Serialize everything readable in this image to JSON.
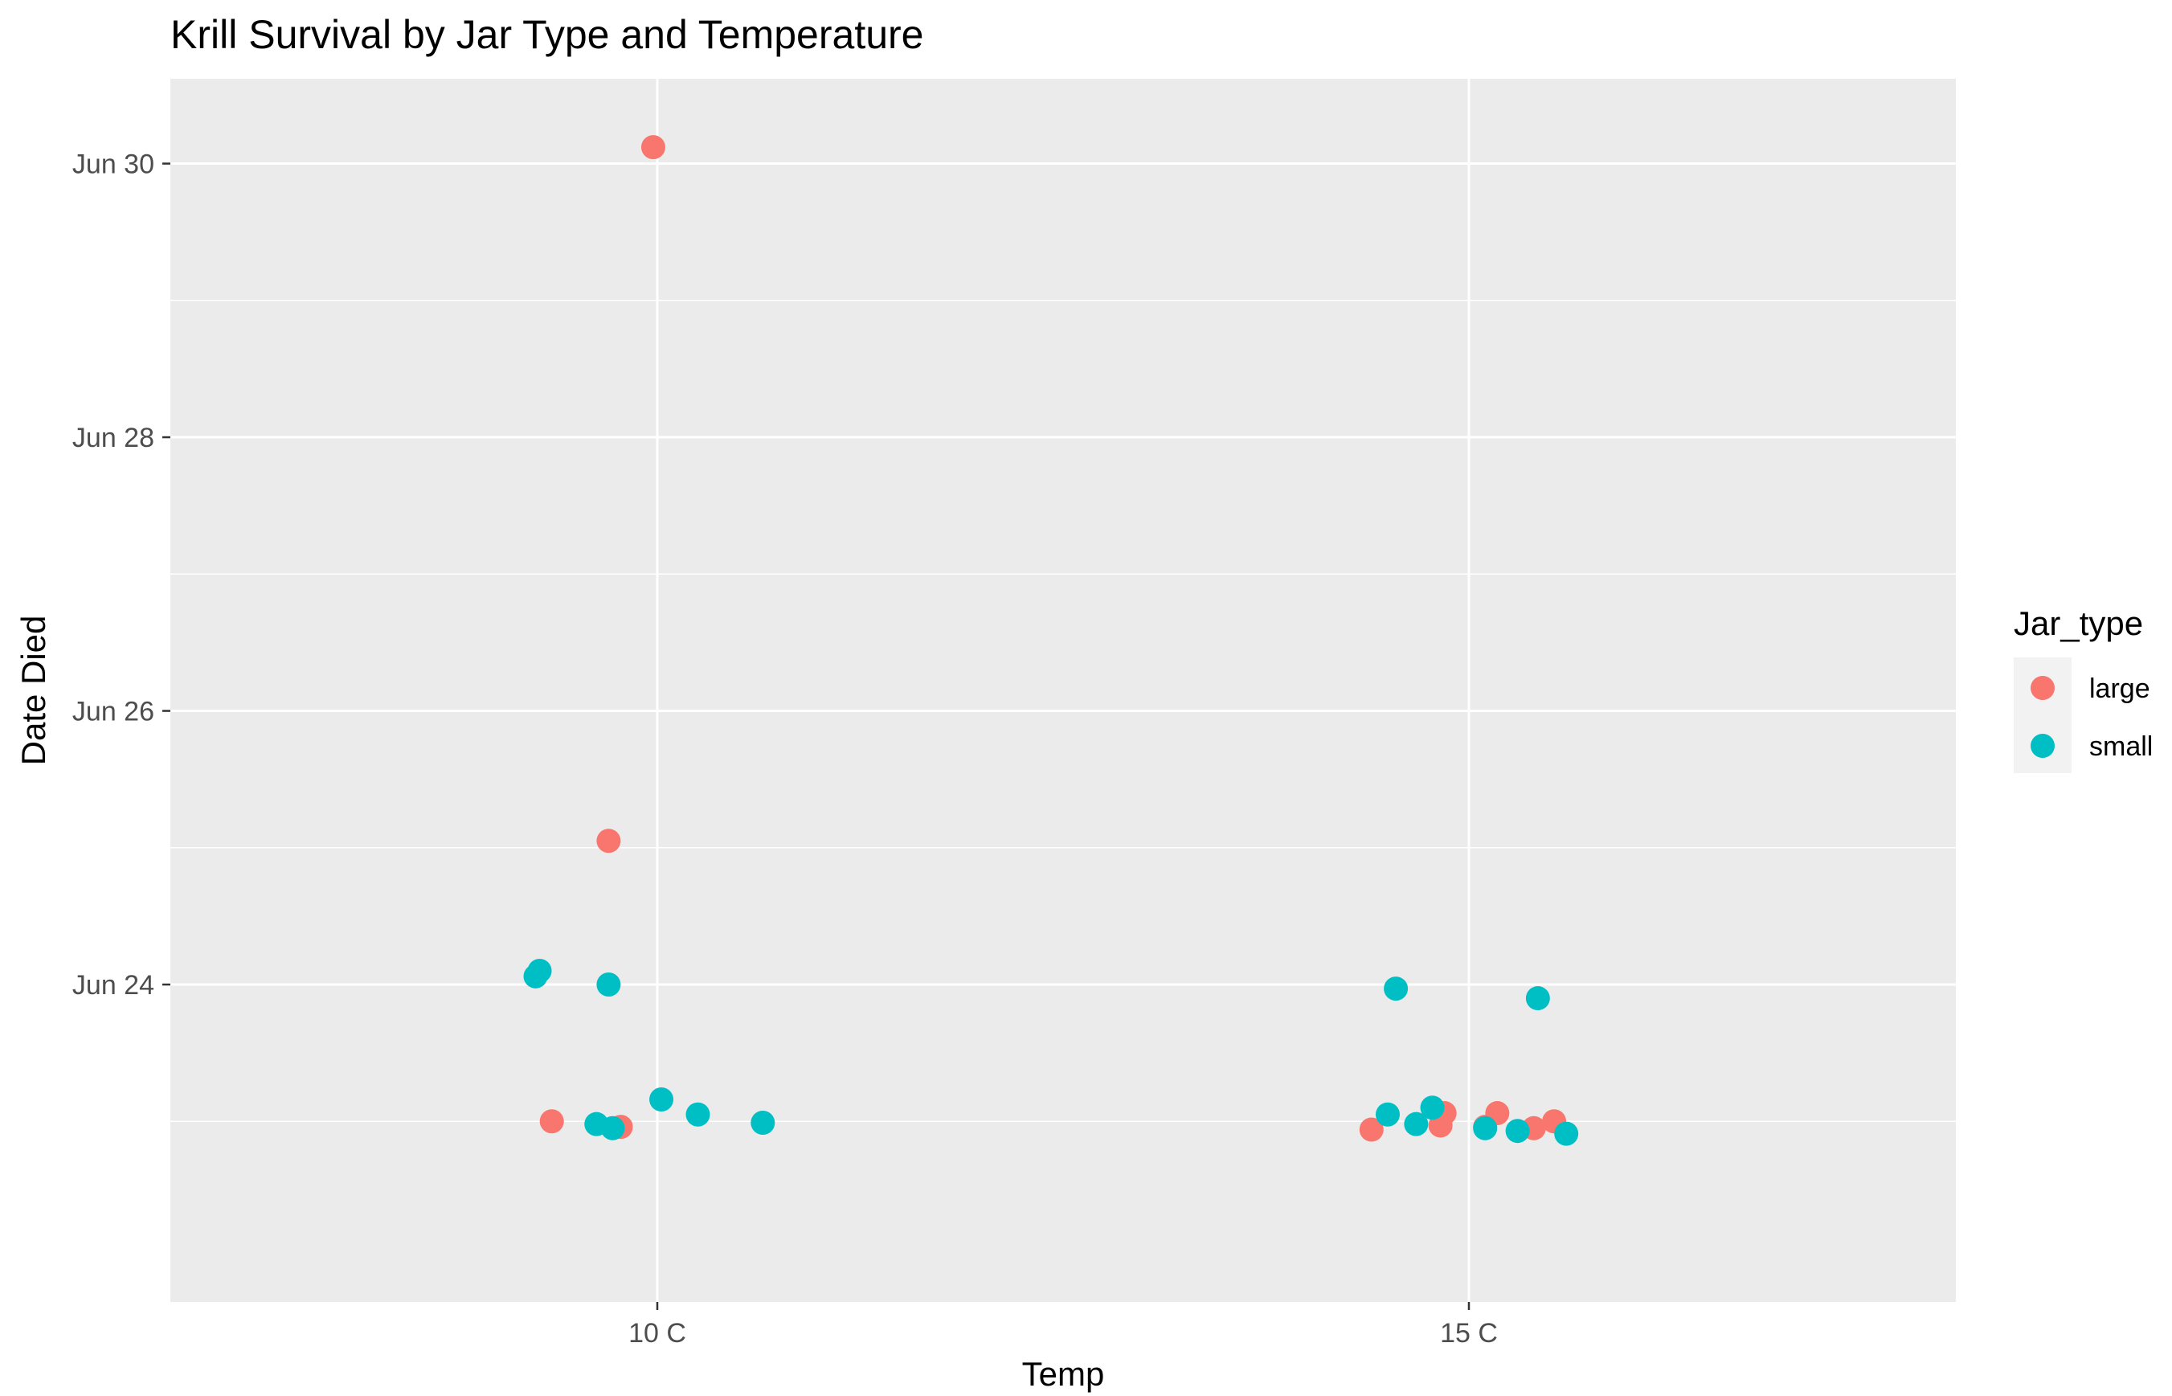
{
  "chart_data": {
    "type": "scatter",
    "title": "Krill Survival by Jar Type and Temperature",
    "xlabel": "Temp",
    "ylabel": "Date Died",
    "x_categories": [
      "10 C",
      "15 C"
    ],
    "y_scale": "date",
    "y_ticks": [
      "Jun 24",
      "Jun 26",
      "Jun 28",
      "Jun 30"
    ],
    "y_tick_dates": [
      "2019-06-24",
      "2019-06-26",
      "2019-06-28",
      "2019-06-30"
    ],
    "ylim": [
      "2019-06-22",
      "2019-06-30"
    ],
    "grid": true,
    "legend": {
      "title": "Jar_type",
      "position": "right"
    },
    "series": [
      {
        "name": "large",
        "color": "#F8766D",
        "points": [
          {
            "x": "10 C",
            "y": "2019-06-30"
          },
          {
            "x": "10 C",
            "y": "2019-06-25"
          },
          {
            "x": "10 C",
            "y": "2019-06-23"
          },
          {
            "x": "10 C",
            "y": "2019-06-23"
          },
          {
            "x": "15 C",
            "y": "2019-06-23"
          },
          {
            "x": "15 C",
            "y": "2019-06-23"
          },
          {
            "x": "15 C",
            "y": "2019-06-23"
          },
          {
            "x": "15 C",
            "y": "2019-06-23"
          },
          {
            "x": "15 C",
            "y": "2019-06-23"
          },
          {
            "x": "15 C",
            "y": "2019-06-23"
          },
          {
            "x": "15 C",
            "y": "2019-06-23"
          }
        ]
      },
      {
        "name": "small",
        "color": "#00BFC4",
        "points": [
          {
            "x": "10 C",
            "y": "2019-06-24"
          },
          {
            "x": "10 C",
            "y": "2019-06-24"
          },
          {
            "x": "10 C",
            "y": "2019-06-24"
          },
          {
            "x": "10 C",
            "y": "2019-06-23"
          },
          {
            "x": "10 C",
            "y": "2019-06-23"
          },
          {
            "x": "10 C",
            "y": "2019-06-23"
          },
          {
            "x": "10 C",
            "y": "2019-06-23"
          },
          {
            "x": "10 C",
            "y": "2019-06-23"
          },
          {
            "x": "15 C",
            "y": "2019-06-24"
          },
          {
            "x": "15 C",
            "y": "2019-06-24"
          },
          {
            "x": "15 C",
            "y": "2019-06-23"
          },
          {
            "x": "15 C",
            "y": "2019-06-23"
          },
          {
            "x": "15 C",
            "y": "2019-06-23"
          },
          {
            "x": "15 C",
            "y": "2019-06-23"
          },
          {
            "x": "15 C",
            "y": "2019-06-23"
          },
          {
            "x": "15 C",
            "y": "2019-06-23"
          }
        ]
      }
    ]
  }
}
